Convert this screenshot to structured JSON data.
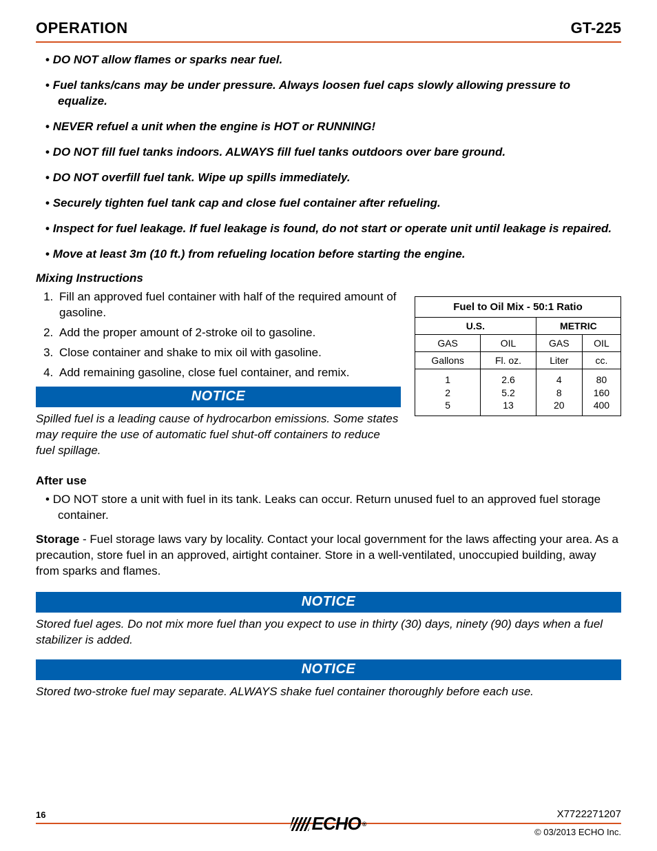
{
  "header": {
    "section": "OPERATION",
    "model": "GT-225"
  },
  "colors": {
    "accent_rule": "#d6521f",
    "notice_bg": "#0060af",
    "notice_fg": "#ffffff",
    "text": "#000000",
    "background": "#ffffff"
  },
  "safety_bullets": [
    "DO NOT allow flames or sparks near fuel.",
    "Fuel tanks/cans may be under pressure. Always loosen fuel caps slowly allowing pressure to equalize.",
    "NEVER refuel a unit when the engine is HOT or RUNNING!",
    "DO NOT fill fuel tanks indoors. ALWAYS fill fuel tanks outdoors over bare ground.",
    "DO NOT overfill fuel tank. Wipe up spills immediately.",
    "Securely tighten fuel tank cap and close fuel container after refueling.",
    "Inspect for fuel leakage. If fuel leakage is found, do not start or operate unit until leakage is repaired.",
    "Move at least 3m (10 ft.) from refueling location before starting the engine."
  ],
  "mixing": {
    "heading": "Mixing Instructions",
    "steps": [
      "Fill an approved fuel container with half of the required amount of gasoline.",
      "Add the proper amount of 2-stroke oil to gasoline.",
      "Close container and shake to mix oil with gasoline.",
      "Add remaining gasoline, close fuel container, and remix."
    ]
  },
  "notice_label": "NOTICE",
  "notice1_text": "Spilled fuel is a leading cause of hydrocarbon emissions. Some states may require the use of automatic fuel shut-off containers to reduce fuel spillage.",
  "after_use": {
    "heading": "After use",
    "bullets": [
      "DO NOT store a unit with fuel in its tank. Leaks can occur. Return unused fuel to an approved fuel storage container."
    ]
  },
  "storage_label": "Storage",
  "storage_text": " - Fuel storage laws vary by locality. Contact your local government for the laws affecting your area. As a precaution, store fuel in an approved, airtight container. Store in a well-ventilated, unoccupied building, away from sparks and flames.",
  "notice2_text": "Stored fuel ages. Do not mix more fuel than you expect to use in thirty (30) days, ninety (90) days when a fuel stabilizer is added.",
  "notice3_text": "Stored two-stroke fuel may separate. ALWAYS shake fuel container thoroughly before each use.",
  "mix_table": {
    "title": "Fuel to Oil Mix - 50:1 Ratio",
    "regions": [
      "U.S.",
      "METRIC"
    ],
    "col_labels": [
      "GAS",
      "OIL",
      "GAS",
      "OIL"
    ],
    "unit_labels": [
      "Gallons",
      "Fl. oz.",
      "Liter",
      "cc."
    ],
    "rows": [
      [
        "1",
        "2.6",
        "4",
        "80"
      ],
      [
        "2",
        "5.2",
        "8",
        "160"
      ],
      [
        "5",
        "13",
        "20",
        "400"
      ]
    ]
  },
  "footer": {
    "page_number": "16",
    "doc_number": "X7722271207",
    "copyright": "© 03/2013 ECHO Inc.",
    "logo_text": "ECHO"
  }
}
